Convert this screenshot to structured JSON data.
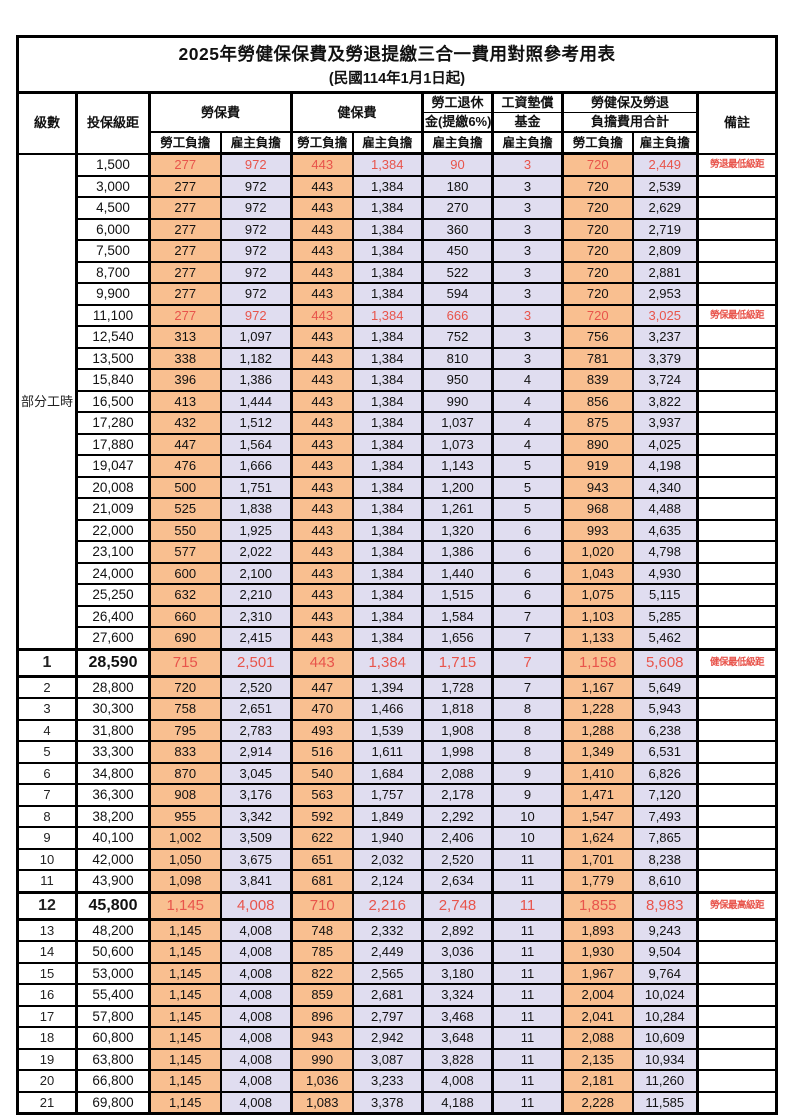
{
  "title": "2025年勞健保保費及勞退提繳三合一費用對照參考用表",
  "subtitle": "(民國114年1月1日起)",
  "header": {
    "level": "級數",
    "bracket": "投保級距",
    "labor_insurance": "勞保費",
    "health_insurance": "健保費",
    "pension_line1": "勞工退休",
    "pension_line2": "金(提繳6%)",
    "wage_fund_line1": "工資墊償",
    "wage_fund_line2": "基金",
    "total_line1": "勞健保及勞退",
    "total_line2": "負擔費用合計",
    "remark": "備註",
    "employee_burden": "勞工負擔",
    "employer_burden": "雇主負擔"
  },
  "colors": {
    "employee_burden_bg": "#F9BF90",
    "employer_burden_bg": "#E0DDF0",
    "highlight_red": "#E8544B",
    "border": "#000000"
  },
  "rows": [
    {
      "level": "部分工時",
      "level_rowspan": 23,
      "bracket": "1,500",
      "values": [
        "277",
        "972",
        "443",
        "1,384",
        "90",
        "3",
        "720",
        "2,449"
      ],
      "remark": "勞退最低級距",
      "style": "red"
    },
    {
      "bracket": "3,000",
      "values": [
        "277",
        "972",
        "443",
        "1,384",
        "180",
        "3",
        "720",
        "2,539"
      ]
    },
    {
      "bracket": "4,500",
      "values": [
        "277",
        "972",
        "443",
        "1,384",
        "270",
        "3",
        "720",
        "2,629"
      ]
    },
    {
      "bracket": "6,000",
      "values": [
        "277",
        "972",
        "443",
        "1,384",
        "360",
        "3",
        "720",
        "2,719"
      ]
    },
    {
      "bracket": "7,500",
      "values": [
        "277",
        "972",
        "443",
        "1,384",
        "450",
        "3",
        "720",
        "2,809"
      ]
    },
    {
      "bracket": "8,700",
      "values": [
        "277",
        "972",
        "443",
        "1,384",
        "522",
        "3",
        "720",
        "2,881"
      ]
    },
    {
      "bracket": "9,900",
      "values": [
        "277",
        "972",
        "443",
        "1,384",
        "594",
        "3",
        "720",
        "2,953"
      ]
    },
    {
      "bracket": "11,100",
      "values": [
        "277",
        "972",
        "443",
        "1,384",
        "666",
        "3",
        "720",
        "3,025"
      ],
      "remark": "勞保最低級距",
      "style": "red"
    },
    {
      "bracket": "12,540",
      "values": [
        "313",
        "1,097",
        "443",
        "1,384",
        "752",
        "3",
        "756",
        "3,237"
      ]
    },
    {
      "bracket": "13,500",
      "values": [
        "338",
        "1,182",
        "443",
        "1,384",
        "810",
        "3",
        "781",
        "3,379"
      ]
    },
    {
      "bracket": "15,840",
      "values": [
        "396",
        "1,386",
        "443",
        "1,384",
        "950",
        "4",
        "839",
        "3,724"
      ]
    },
    {
      "bracket": "16,500",
      "values": [
        "413",
        "1,444",
        "443",
        "1,384",
        "990",
        "4",
        "856",
        "3,822"
      ]
    },
    {
      "bracket": "17,280",
      "values": [
        "432",
        "1,512",
        "443",
        "1,384",
        "1,037",
        "4",
        "875",
        "3,937"
      ]
    },
    {
      "bracket": "17,880",
      "values": [
        "447",
        "1,564",
        "443",
        "1,384",
        "1,073",
        "4",
        "890",
        "4,025"
      ]
    },
    {
      "bracket": "19,047",
      "values": [
        "476",
        "1,666",
        "443",
        "1,384",
        "1,143",
        "5",
        "919",
        "4,198"
      ]
    },
    {
      "bracket": "20,008",
      "values": [
        "500",
        "1,751",
        "443",
        "1,384",
        "1,200",
        "5",
        "943",
        "4,340"
      ]
    },
    {
      "bracket": "21,009",
      "values": [
        "525",
        "1,838",
        "443",
        "1,384",
        "1,261",
        "5",
        "968",
        "4,488"
      ]
    },
    {
      "bracket": "22,000",
      "values": [
        "550",
        "1,925",
        "443",
        "1,384",
        "1,320",
        "6",
        "993",
        "4,635"
      ]
    },
    {
      "bracket": "23,100",
      "values": [
        "577",
        "2,022",
        "443",
        "1,384",
        "1,386",
        "6",
        "1,020",
        "4,798"
      ]
    },
    {
      "bracket": "24,000",
      "values": [
        "600",
        "2,100",
        "443",
        "1,384",
        "1,440",
        "6",
        "1,043",
        "4,930"
      ]
    },
    {
      "bracket": "25,250",
      "values": [
        "632",
        "2,210",
        "443",
        "1,384",
        "1,515",
        "6",
        "1,075",
        "5,115"
      ]
    },
    {
      "bracket": "26,400",
      "values": [
        "660",
        "2,310",
        "443",
        "1,384",
        "1,584",
        "7",
        "1,103",
        "5,285"
      ]
    },
    {
      "bracket": "27,600",
      "values": [
        "690",
        "2,415",
        "443",
        "1,384",
        "1,656",
        "7",
        "1,133",
        "5,462"
      ]
    },
    {
      "level": "1",
      "bracket": "28,590",
      "values": [
        "715",
        "2,501",
        "443",
        "1,384",
        "1,715",
        "7",
        "1,158",
        "5,608"
      ],
      "remark": "健保最低級距",
      "style": "redBold"
    },
    {
      "level": "2",
      "bracket": "28,800",
      "values": [
        "720",
        "2,520",
        "447",
        "1,394",
        "1,728",
        "7",
        "1,167",
        "5,649"
      ]
    },
    {
      "level": "3",
      "bracket": "30,300",
      "values": [
        "758",
        "2,651",
        "470",
        "1,466",
        "1,818",
        "8",
        "1,228",
        "5,943"
      ]
    },
    {
      "level": "4",
      "bracket": "31,800",
      "values": [
        "795",
        "2,783",
        "493",
        "1,539",
        "1,908",
        "8",
        "1,288",
        "6,238"
      ]
    },
    {
      "level": "5",
      "bracket": "33,300",
      "values": [
        "833",
        "2,914",
        "516",
        "1,611",
        "1,998",
        "8",
        "1,349",
        "6,531"
      ]
    },
    {
      "level": "6",
      "bracket": "34,800",
      "values": [
        "870",
        "3,045",
        "540",
        "1,684",
        "2,088",
        "9",
        "1,410",
        "6,826"
      ]
    },
    {
      "level": "7",
      "bracket": "36,300",
      "values": [
        "908",
        "3,176",
        "563",
        "1,757",
        "2,178",
        "9",
        "1,471",
        "7,120"
      ]
    },
    {
      "level": "8",
      "bracket": "38,200",
      "values": [
        "955",
        "3,342",
        "592",
        "1,849",
        "2,292",
        "10",
        "1,547",
        "7,493"
      ]
    },
    {
      "level": "9",
      "bracket": "40,100",
      "values": [
        "1,002",
        "3,509",
        "622",
        "1,940",
        "2,406",
        "10",
        "1,624",
        "7,865"
      ]
    },
    {
      "level": "10",
      "bracket": "42,000",
      "values": [
        "1,050",
        "3,675",
        "651",
        "2,032",
        "2,520",
        "11",
        "1,701",
        "8,238"
      ]
    },
    {
      "level": "11",
      "bracket": "43,900",
      "values": [
        "1,098",
        "3,841",
        "681",
        "2,124",
        "2,634",
        "11",
        "1,779",
        "8,610"
      ]
    },
    {
      "level": "12",
      "bracket": "45,800",
      "values": [
        "1,145",
        "4,008",
        "710",
        "2,216",
        "2,748",
        "11",
        "1,855",
        "8,983"
      ],
      "remark": "勞保最高級距",
      "style": "redBold"
    },
    {
      "level": "13",
      "bracket": "48,200",
      "values": [
        "1,145",
        "4,008",
        "748",
        "2,332",
        "2,892",
        "11",
        "1,893",
        "9,243"
      ]
    },
    {
      "level": "14",
      "bracket": "50,600",
      "values": [
        "1,145",
        "4,008",
        "785",
        "2,449",
        "3,036",
        "11",
        "1,930",
        "9,504"
      ]
    },
    {
      "level": "15",
      "bracket": "53,000",
      "values": [
        "1,145",
        "4,008",
        "822",
        "2,565",
        "3,180",
        "11",
        "1,967",
        "9,764"
      ]
    },
    {
      "level": "16",
      "bracket": "55,400",
      "values": [
        "1,145",
        "4,008",
        "859",
        "2,681",
        "3,324",
        "11",
        "2,004",
        "10,024"
      ]
    },
    {
      "level": "17",
      "bracket": "57,800",
      "values": [
        "1,145",
        "4,008",
        "896",
        "2,797",
        "3,468",
        "11",
        "2,041",
        "10,284"
      ]
    },
    {
      "level": "18",
      "bracket": "60,800",
      "values": [
        "1,145",
        "4,008",
        "943",
        "2,942",
        "3,648",
        "11",
        "2,088",
        "10,609"
      ]
    },
    {
      "level": "19",
      "bracket": "63,800",
      "values": [
        "1,145",
        "4,008",
        "990",
        "3,087",
        "3,828",
        "11",
        "2,135",
        "10,934"
      ]
    },
    {
      "level": "20",
      "bracket": "66,800",
      "values": [
        "1,145",
        "4,008",
        "1,036",
        "3,233",
        "4,008",
        "11",
        "2,181",
        "11,260"
      ]
    },
    {
      "level": "21",
      "bracket": "69,800",
      "values": [
        "1,145",
        "4,008",
        "1,083",
        "3,378",
        "4,188",
        "11",
        "2,228",
        "11,585"
      ]
    }
  ]
}
